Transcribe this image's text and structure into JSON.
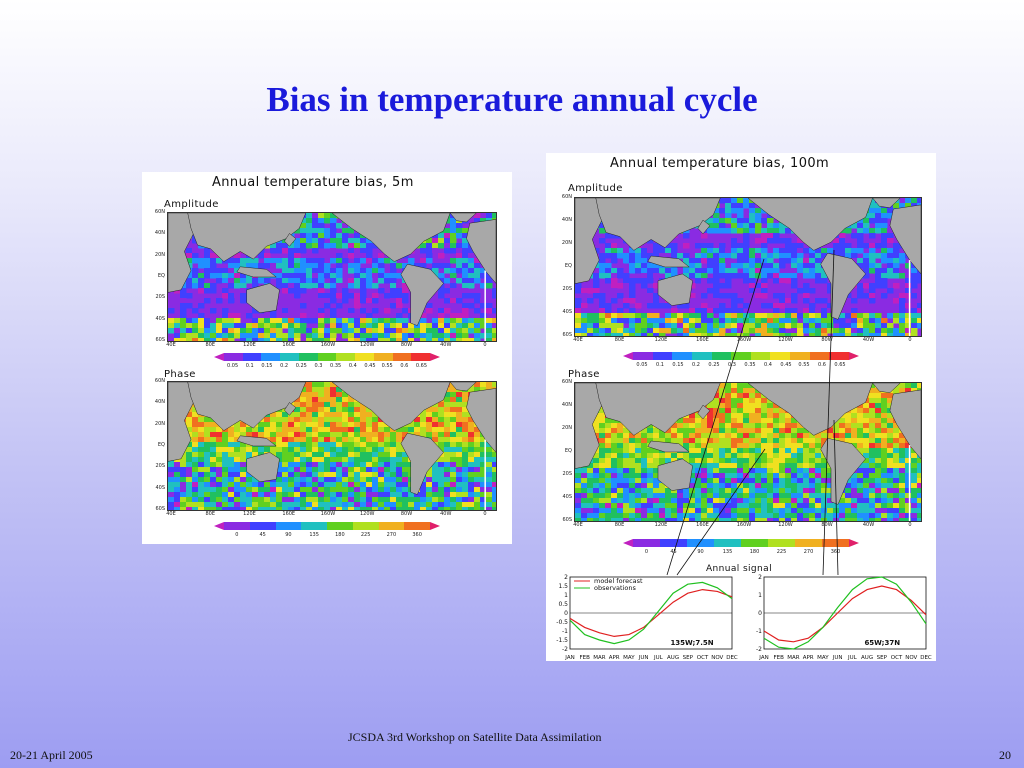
{
  "slide": {
    "title": "Bias in temperature annual cycle",
    "footer_center": "JCSDA 3rd Workshop on Satellite Data Assimilation",
    "footer_left": "20-21 April 2005",
    "footer_right": "20"
  },
  "left_figure": {
    "title": "Annual temperature bias, 5m",
    "amplitude_label": "Amplitude",
    "phase_label": "Phase",
    "lat_labels": [
      "60N",
      "40N",
      "20N",
      "EQ",
      "20S",
      "40S",
      "60S"
    ],
    "lon_labels": [
      "40E",
      "80E",
      "120E",
      "160E",
      "160W",
      "120W",
      "80W",
      "40W",
      "0"
    ],
    "amp_scale": [
      "0.05",
      "0.1",
      "0.15",
      "0.2",
      "0.25",
      "0.3",
      "0.35",
      "0.4",
      "0.45",
      "0.55",
      "0.6",
      "0.65"
    ],
    "phase_scale": [
      "0",
      "45",
      "90",
      "135",
      "180",
      "225",
      "270",
      "360"
    ]
  },
  "right_figure": {
    "title": "Annual temperature bias, 100m",
    "amplitude_label": "Amplitude",
    "phase_label": "Phase",
    "lat_labels": [
      "60N",
      "40N",
      "20N",
      "EQ",
      "20S",
      "40S",
      "60S"
    ],
    "lon_labels": [
      "40E",
      "80E",
      "120E",
      "160E",
      "160W",
      "120W",
      "80W",
      "40W",
      "0"
    ],
    "amp_scale": [
      "0.05",
      "0.1",
      "0.15",
      "0.2",
      "0.25",
      "0.3",
      "0.35",
      "0.4",
      "0.45",
      "0.55",
      "0.6",
      "0.65"
    ],
    "phase_scale": [
      "0",
      "45",
      "90",
      "135",
      "180",
      "225",
      "270",
      "360"
    ]
  },
  "annual_signal": {
    "title": "Annual signal",
    "legend_model": "model forecast",
    "legend_obs": "observations",
    "months": [
      "JAN",
      "FEB",
      "MAR",
      "APR",
      "MAY",
      "JUN",
      "JUL",
      "AUG",
      "SEP",
      "OCT",
      "NOV",
      "DEC"
    ],
    "left_yticks": [
      "2",
      "1.5",
      "1",
      "0.5",
      "0",
      "-0.5",
      "-1",
      "-1.5",
      "-2"
    ],
    "right_yticks": [
      "2",
      "1",
      "0",
      "-1",
      "-2"
    ],
    "left_location": "135W;7.5N",
    "right_location": "65W;37N"
  },
  "chart_data": [
    {
      "type": "line",
      "title": "",
      "location": "135W;7.5N",
      "categories": [
        "JAN",
        "FEB",
        "MAR",
        "APR",
        "MAY",
        "JUN",
        "JUL",
        "AUG",
        "SEP",
        "OCT",
        "NOV",
        "DEC"
      ],
      "ylim": [
        -2,
        2
      ],
      "series": [
        {
          "name": "model forecast",
          "color": "#e02020",
          "values": [
            -0.3,
            -0.8,
            -1.1,
            -1.3,
            -1.2,
            -0.8,
            -0.1,
            0.6,
            1.1,
            1.3,
            1.2,
            0.9
          ]
        },
        {
          "name": "observations",
          "color": "#20c020",
          "values": [
            -0.4,
            -1.2,
            -1.5,
            -1.7,
            -1.5,
            -0.9,
            0.1,
            1.1,
            1.6,
            1.7,
            1.4,
            0.8
          ]
        }
      ]
    },
    {
      "type": "line",
      "title": "",
      "location": "65W;37N",
      "categories": [
        "JAN",
        "FEB",
        "MAR",
        "APR",
        "MAY",
        "JUN",
        "JUL",
        "AUG",
        "SEP",
        "OCT",
        "NOV",
        "DEC"
      ],
      "ylim": [
        -2,
        2
      ],
      "series": [
        {
          "name": "model forecast",
          "color": "#e02020",
          "values": [
            -1.0,
            -1.5,
            -1.6,
            -1.4,
            -0.8,
            0.0,
            0.8,
            1.3,
            1.5,
            1.3,
            0.7,
            -0.1
          ]
        },
        {
          "name": "observations",
          "color": "#20c020",
          "values": [
            -1.4,
            -1.9,
            -2.0,
            -1.6,
            -0.8,
            0.3,
            1.3,
            1.9,
            2.0,
            1.6,
            0.6,
            -0.6
          ]
        }
      ]
    }
  ],
  "colors": {
    "title": "#1a1adb",
    "land": "#a8a8a8",
    "model": "#e02020",
    "observations": "#20c020",
    "scale": [
      "#c020c0",
      "#8a2be2",
      "#4040ff",
      "#2090ff",
      "#20c0c0",
      "#20c060",
      "#60d020",
      "#b0e020",
      "#f0e020",
      "#f0b020",
      "#f07020",
      "#f03030",
      "#e0206a"
    ]
  }
}
